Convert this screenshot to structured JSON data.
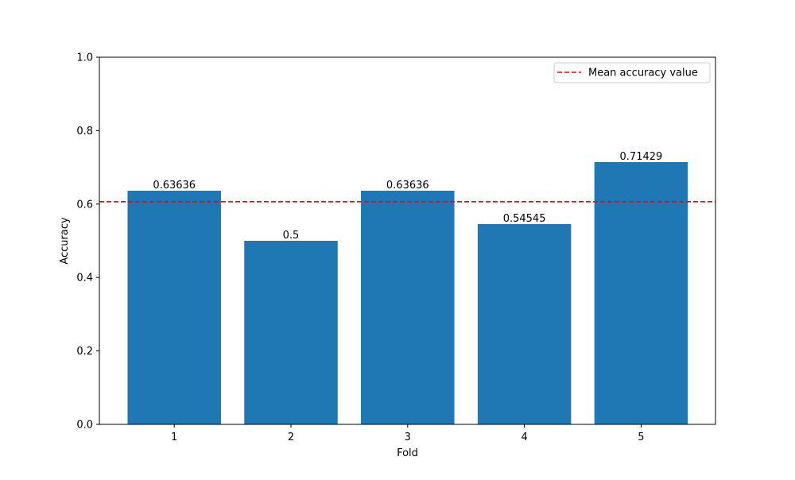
{
  "chart_data": {
    "type": "bar",
    "categories": [
      "1",
      "2",
      "3",
      "4",
      "5"
    ],
    "values": [
      0.63636,
      0.5,
      0.63636,
      0.54545,
      0.71429
    ],
    "data_labels": [
      "0.63636",
      "0.5",
      "0.63636",
      "0.54545",
      "0.71429"
    ],
    "xlabel": "Fold",
    "ylabel": "Accuracy",
    "ylim": [
      0,
      1
    ],
    "yticks": [
      "0.0",
      "0.2",
      "0.4",
      "0.6",
      "0.8",
      "1.0"
    ],
    "bar_color": "#1f77b4",
    "mean_line": {
      "label": "Mean accuracy value",
      "value": 0.60649,
      "color": "#ff0000",
      "style": "dashed"
    },
    "legend_position": "top-right",
    "grid": false
  }
}
